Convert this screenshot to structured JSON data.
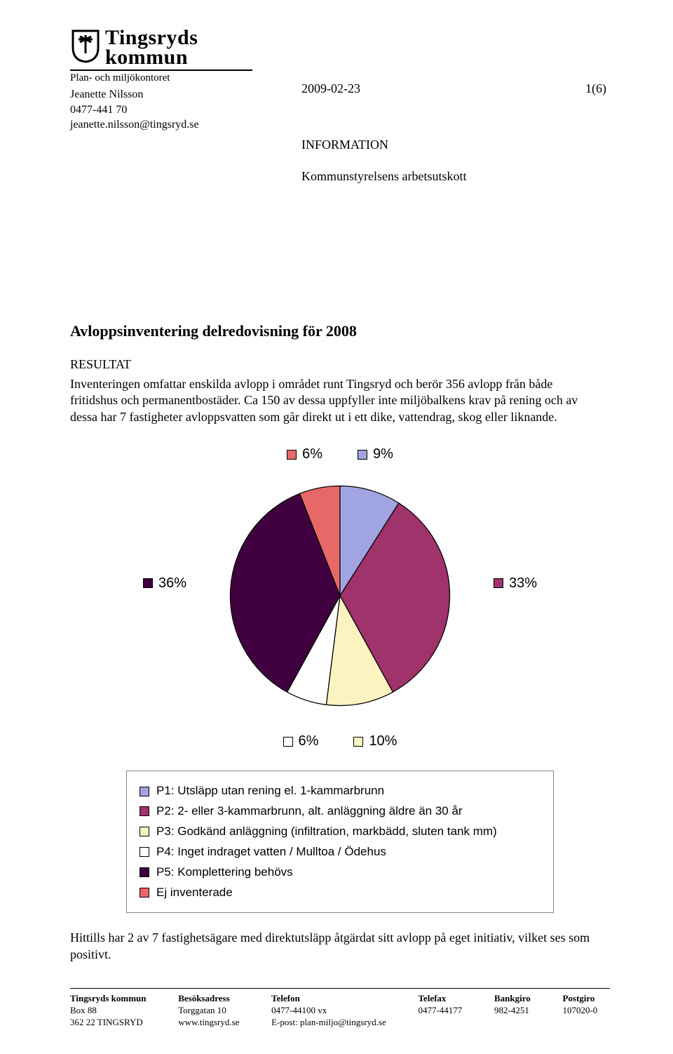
{
  "header": {
    "logo_line1": "Tingsryds",
    "logo_line2": "kommun",
    "department": "Plan- och miljökontoret",
    "author_name": "Jeanette Nilsson",
    "author_phone": "0477-441 70",
    "author_email": "jeanette.nilsson@tingsryd.se",
    "date": "2009-02-23",
    "page_num": "1(6)",
    "doc_type": "INFORMATION",
    "recipient": "Kommunstyrelsens arbetsutskott"
  },
  "body": {
    "title": "Avloppsinventering delredovisning för 2008",
    "result_label": "RESULTAT",
    "paragraph1": "Inventeringen omfattar enskilda avlopp i området runt Tingsryd och berör 356 avlopp från både fritidshus och permanentbostäder. Ca 150 av dessa uppfyller inte miljöbalkens krav på rening och av dessa har 7 fastigheter avloppsvatten som går direkt ut i ett dike, vattendrag, skog eller liknande.",
    "paragraph2": "Hittills har 2 av 7 fastighetsägare med direktutsläpp åtgärdat sitt avlopp på eget initiativ, vilket ses som positivt."
  },
  "chart": {
    "type": "pie",
    "background_color": "#ffffff",
    "stroke": "#000000",
    "label_fontsize": 20,
    "slices": [
      {
        "key": "P1",
        "value": 9,
        "label": "9%",
        "color": "#a0a4e0"
      },
      {
        "key": "P2",
        "value": 33,
        "label": "33%",
        "color": "#a0326c"
      },
      {
        "key": "P3",
        "value": 10,
        "label": "10%",
        "color": "#fcf4c0"
      },
      {
        "key": "P4",
        "value": 6,
        "label": "6%",
        "color": "#ffffff"
      },
      {
        "key": "P5",
        "value": 36,
        "label": "36%",
        "color": "#400040"
      },
      {
        "key": "Ej",
        "value": 6,
        "label": "6%",
        "color": "#e86868"
      }
    ],
    "legend": [
      {
        "color": "#a0a4e0",
        "text": "P1: Utsläpp utan rening el. 1-kammarbrunn"
      },
      {
        "color": "#a0326c",
        "text": "P2: 2- eller 3-kammarbrunn, alt. anläggning äldre än 30 år"
      },
      {
        "color": "#fcf4c0",
        "text": "P3: Godkänd anläggning (infiltration, markbädd, sluten tank mm)"
      },
      {
        "color": "#ffffff",
        "text": "P4: Inget indraget vatten / Mulltoa / Ödehus"
      },
      {
        "color": "#400040",
        "text": "P5: Komplettering behövs"
      },
      {
        "color": "#e86868",
        "text": "Ej inventerade"
      }
    ]
  },
  "footer": {
    "col1": {
      "h": "Tingsryds kommun",
      "l1": "Box 88",
      "l2": "362 22  TINGSRYD"
    },
    "col2": {
      "h": "Besöksadress",
      "l1": "Torggatan 10",
      "l2": "www.tingsryd.se"
    },
    "col3": {
      "h": "Telefon",
      "l1": "0477-44100 vx",
      "l2": "E-post: plan-miljo@tingsryd.se"
    },
    "col4": {
      "h": "Telefax",
      "l1": "0477-44177",
      "l2": ""
    },
    "col5": {
      "h": "Bankgiro",
      "l1": "982-4251",
      "l2": ""
    },
    "col6": {
      "h": "Postgiro",
      "l1": "107020-0",
      "l2": ""
    }
  }
}
